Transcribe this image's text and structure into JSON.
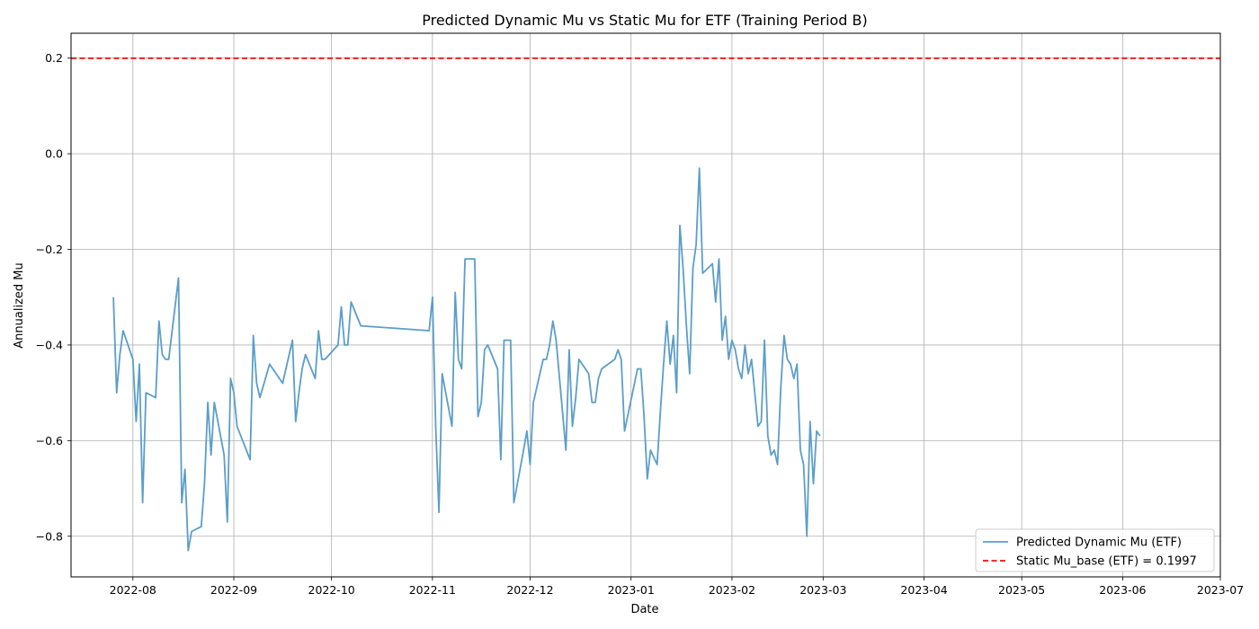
{
  "chart_data": {
    "type": "line",
    "title": "Predicted Dynamic Mu vs Static Mu for ETF (Training Period B)",
    "xlabel": "Date",
    "ylabel": "Annualized Mu",
    "xlim": [
      "2022-07-13",
      "2023-07-01"
    ],
    "ylim": [
      -0.885,
      0.252
    ],
    "grid": true,
    "legend_position": "lower-right",
    "x_ticks": [
      {
        "date": "2022-08-01",
        "label": "2022-08"
      },
      {
        "date": "2022-09-01",
        "label": "2022-09"
      },
      {
        "date": "2022-10-01",
        "label": "2022-10"
      },
      {
        "date": "2022-11-01",
        "label": "2022-11"
      },
      {
        "date": "2022-12-01",
        "label": "2022-12"
      },
      {
        "date": "2023-01-01",
        "label": "2023-01"
      },
      {
        "date": "2023-02-01",
        "label": "2023-02"
      },
      {
        "date": "2023-03-01",
        "label": "2023-03"
      },
      {
        "date": "2023-04-01",
        "label": "2023-04"
      },
      {
        "date": "2023-05-01",
        "label": "2023-05"
      },
      {
        "date": "2023-06-01",
        "label": "2023-06"
      },
      {
        "date": "2023-07-01",
        "label": "2023-07"
      }
    ],
    "y_ticks": [
      {
        "value": 0.2,
        "label": "0.2"
      },
      {
        "value": 0.0,
        "label": "0.0"
      },
      {
        "value": -0.2,
        "label": "−0.2"
      },
      {
        "value": -0.4,
        "label": "−0.4"
      },
      {
        "value": -0.6,
        "label": "−0.6"
      },
      {
        "value": -0.8,
        "label": "−0.8"
      }
    ],
    "series": [
      {
        "name": "Predicted Dynamic Mu (ETF)",
        "color": "#5b9ec9",
        "style": "solid",
        "points": [
          [
            "2022-07-26",
            -0.3
          ],
          [
            "2022-07-27",
            -0.5
          ],
          [
            "2022-07-28",
            -0.42
          ],
          [
            "2022-07-29",
            -0.37
          ],
          [
            "2022-08-01",
            -0.43
          ],
          [
            "2022-08-02",
            -0.56
          ],
          [
            "2022-08-03",
            -0.44
          ],
          [
            "2022-08-04",
            -0.73
          ],
          [
            "2022-08-05",
            -0.5
          ],
          [
            "2022-08-08",
            -0.51
          ],
          [
            "2022-08-09",
            -0.35
          ],
          [
            "2022-08-10",
            -0.42
          ],
          [
            "2022-08-11",
            -0.43
          ],
          [
            "2022-08-12",
            -0.43
          ],
          [
            "2022-08-15",
            -0.26
          ],
          [
            "2022-08-16",
            -0.73
          ],
          [
            "2022-08-17",
            -0.66
          ],
          [
            "2022-08-18",
            -0.83
          ],
          [
            "2022-08-19",
            -0.79
          ],
          [
            "2022-08-22",
            -0.78
          ],
          [
            "2022-08-23",
            -0.69
          ],
          [
            "2022-08-24",
            -0.52
          ],
          [
            "2022-08-25",
            -0.63
          ],
          [
            "2022-08-26",
            -0.52
          ],
          [
            "2022-08-29",
            -0.63
          ],
          [
            "2022-08-30",
            -0.77
          ],
          [
            "2022-08-31",
            -0.47
          ],
          [
            "2022-09-01",
            -0.5
          ],
          [
            "2022-09-02",
            -0.57
          ],
          [
            "2022-09-06",
            -0.64
          ],
          [
            "2022-09-07",
            -0.38
          ],
          [
            "2022-09-08",
            -0.48
          ],
          [
            "2022-09-09",
            -0.51
          ],
          [
            "2022-09-12",
            -0.44
          ],
          [
            "2022-09-15",
            -0.47
          ],
          [
            "2022-09-16",
            -0.48
          ],
          [
            "2022-09-19",
            -0.39
          ],
          [
            "2022-09-20",
            -0.56
          ],
          [
            "2022-09-21",
            -0.5
          ],
          [
            "2022-09-22",
            -0.45
          ],
          [
            "2022-09-23",
            -0.42
          ],
          [
            "2022-09-26",
            -0.47
          ],
          [
            "2022-09-27",
            -0.37
          ],
          [
            "2022-09-28",
            -0.43
          ],
          [
            "2022-09-29",
            -0.43
          ],
          [
            "2022-10-03",
            -0.4
          ],
          [
            "2022-10-04",
            -0.32
          ],
          [
            "2022-10-05",
            -0.4
          ],
          [
            "2022-10-06",
            -0.4
          ],
          [
            "2022-10-07",
            -0.31
          ],
          [
            "2022-10-10",
            -0.36
          ],
          [
            "2022-10-31",
            -0.37
          ],
          [
            "2022-11-01",
            -0.3
          ],
          [
            "2022-11-02",
            -0.57
          ],
          [
            "2022-11-03",
            -0.75
          ],
          [
            "2022-11-04",
            -0.46
          ],
          [
            "2022-11-07",
            -0.57
          ],
          [
            "2022-11-08",
            -0.29
          ],
          [
            "2022-11-09",
            -0.43
          ],
          [
            "2022-11-10",
            -0.45
          ],
          [
            "2022-11-11",
            -0.22
          ],
          [
            "2022-11-14",
            -0.22
          ],
          [
            "2022-11-15",
            -0.55
          ],
          [
            "2022-11-16",
            -0.52
          ],
          [
            "2022-11-17",
            -0.41
          ],
          [
            "2022-11-18",
            -0.4
          ],
          [
            "2022-11-21",
            -0.45
          ],
          [
            "2022-11-22",
            -0.64
          ],
          [
            "2022-11-23",
            -0.39
          ],
          [
            "2022-11-25",
            -0.39
          ],
          [
            "2022-11-26",
            -0.73
          ],
          [
            "2022-11-29",
            -0.62
          ],
          [
            "2022-11-30",
            -0.58
          ],
          [
            "2022-12-01",
            -0.65
          ],
          [
            "2022-12-02",
            -0.52
          ],
          [
            "2022-12-05",
            -0.43
          ],
          [
            "2022-12-06",
            -0.43
          ],
          [
            "2022-12-07",
            -0.4
          ],
          [
            "2022-12-08",
            -0.35
          ],
          [
            "2022-12-09",
            -0.39
          ],
          [
            "2022-12-12",
            -0.62
          ],
          [
            "2022-12-13",
            -0.41
          ],
          [
            "2022-12-14",
            -0.57
          ],
          [
            "2022-12-15",
            -0.51
          ],
          [
            "2022-12-16",
            -0.43
          ],
          [
            "2022-12-19",
            -0.46
          ],
          [
            "2022-12-20",
            -0.52
          ],
          [
            "2022-12-21",
            -0.52
          ],
          [
            "2022-12-22",
            -0.47
          ],
          [
            "2022-12-23",
            -0.45
          ],
          [
            "2022-12-27",
            -0.43
          ],
          [
            "2022-12-28",
            -0.41
          ],
          [
            "2022-12-29",
            -0.43
          ],
          [
            "2022-12-30",
            -0.58
          ],
          [
            "2023-01-03",
            -0.45
          ],
          [
            "2023-01-04",
            -0.45
          ],
          [
            "2023-01-05",
            -0.55
          ],
          [
            "2023-01-06",
            -0.68
          ],
          [
            "2023-01-07",
            -0.62
          ],
          [
            "2023-01-09",
            -0.65
          ],
          [
            "2023-01-10",
            -0.54
          ],
          [
            "2023-01-11",
            -0.44
          ],
          [
            "2023-01-12",
            -0.35
          ],
          [
            "2023-01-13",
            -0.44
          ],
          [
            "2023-01-14",
            -0.38
          ],
          [
            "2023-01-15",
            -0.5
          ],
          [
            "2023-01-16",
            -0.15
          ],
          [
            "2023-01-17",
            -0.24
          ],
          [
            "2023-01-18",
            -0.36
          ],
          [
            "2023-01-19",
            -0.46
          ],
          [
            "2023-01-20",
            -0.24
          ],
          [
            "2023-01-21",
            -0.19
          ],
          [
            "2023-01-22",
            -0.03
          ],
          [
            "2023-01-23",
            -0.25
          ],
          [
            "2023-01-26",
            -0.23
          ],
          [
            "2023-01-27",
            -0.31
          ],
          [
            "2023-01-28",
            -0.22
          ],
          [
            "2023-01-29",
            -0.39
          ],
          [
            "2023-01-30",
            -0.34
          ],
          [
            "2023-01-31",
            -0.43
          ],
          [
            "2023-02-01",
            -0.39
          ],
          [
            "2023-02-02",
            -0.41
          ],
          [
            "2023-02-03",
            -0.45
          ],
          [
            "2023-02-04",
            -0.47
          ],
          [
            "2023-02-05",
            -0.4
          ],
          [
            "2023-02-06",
            -0.46
          ],
          [
            "2023-02-07",
            -0.43
          ],
          [
            "2023-02-08",
            -0.5
          ],
          [
            "2023-02-09",
            -0.57
          ],
          [
            "2023-02-10",
            -0.56
          ],
          [
            "2023-02-11",
            -0.39
          ],
          [
            "2023-02-12",
            -0.59
          ],
          [
            "2023-02-13",
            -0.63
          ],
          [
            "2023-02-14",
            -0.62
          ],
          [
            "2023-02-15",
            -0.65
          ],
          [
            "2023-02-16",
            -0.49
          ],
          [
            "2023-02-17",
            -0.38
          ],
          [
            "2023-02-18",
            -0.43
          ],
          [
            "2023-02-19",
            -0.44
          ],
          [
            "2023-02-20",
            -0.47
          ],
          [
            "2023-02-21",
            -0.44
          ],
          [
            "2023-02-22",
            -0.62
          ],
          [
            "2023-02-23",
            -0.65
          ],
          [
            "2023-02-24",
            -0.8
          ],
          [
            "2023-02-25",
            -0.56
          ],
          [
            "2023-02-26",
            -0.69
          ],
          [
            "2023-02-27",
            -0.58
          ],
          [
            "2023-02-28",
            -0.59
          ]
        ]
      },
      {
        "name": "Static Mu_base (ETF) = 0.1997",
        "color": "#e8130f",
        "style": "dashed",
        "value": 0.1997
      }
    ]
  }
}
